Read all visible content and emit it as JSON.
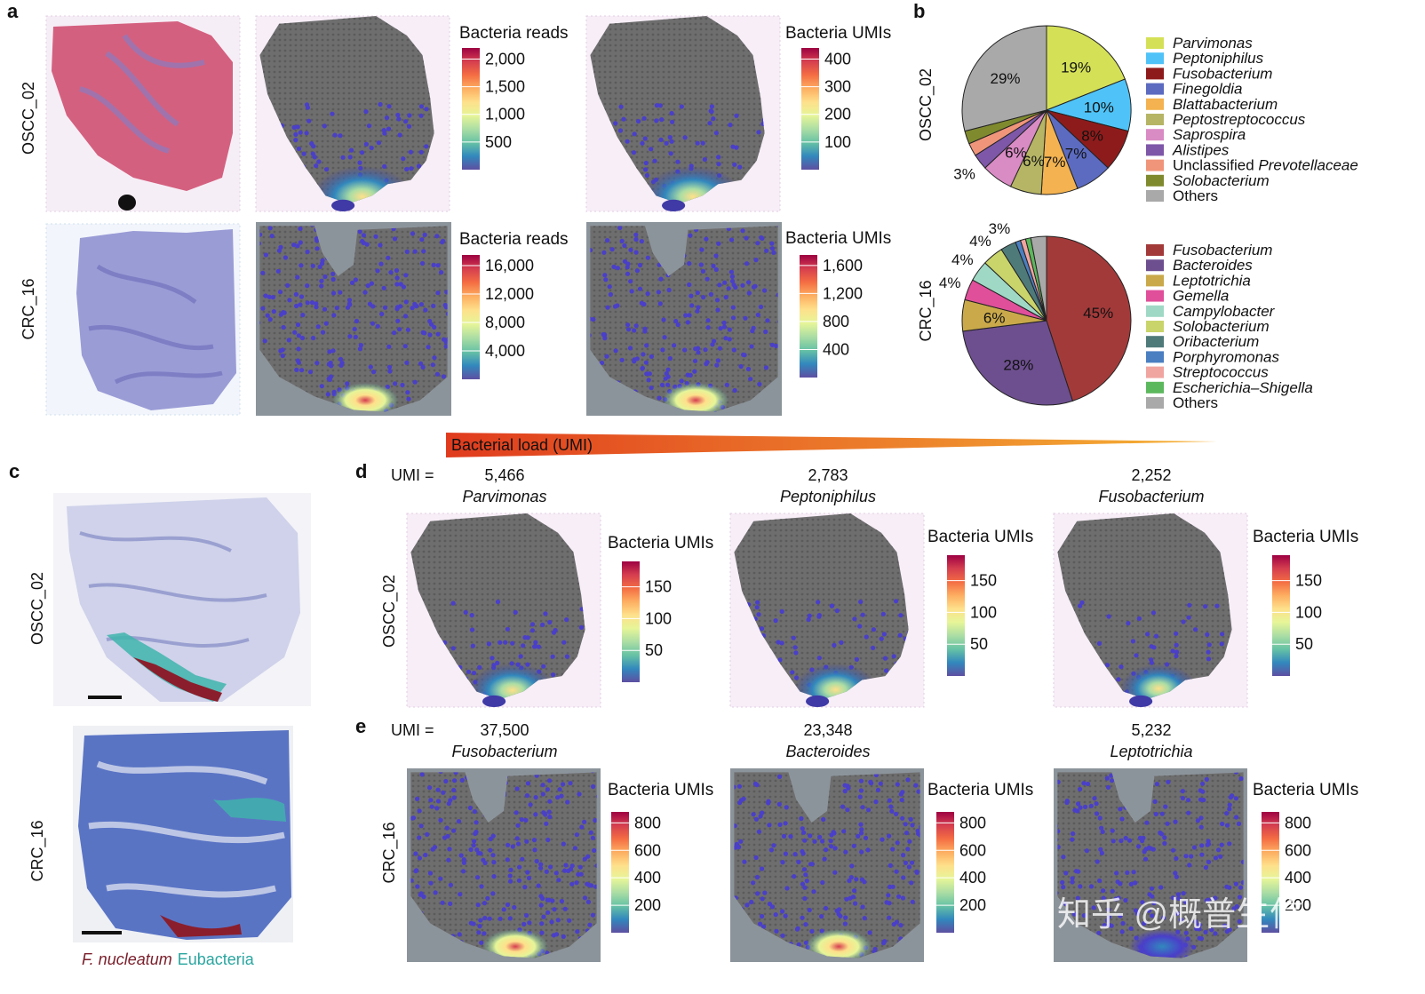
{
  "panels": {
    "a": {
      "label": "a"
    },
    "b": {
      "label": "b"
    },
    "c": {
      "label": "c"
    },
    "d": {
      "label": "d"
    },
    "e": {
      "label": "e"
    }
  },
  "samples": {
    "oscc": "OSCC_02",
    "crc": "CRC_16"
  },
  "colorbar_colors": [
    "#5e4fa2",
    "#3288bd",
    "#66c2a5",
    "#abdda4",
    "#e6f598",
    "#fee08b",
    "#fdae61",
    "#f46d43",
    "#d53e4f",
    "#9e0142"
  ],
  "tissue_colors": {
    "he": "#d4607f",
    "ihc": "#8b8ccf",
    "spot_bg": "#6e6e6e",
    "low_spot": "#4a3fc9"
  },
  "load_bar": {
    "label": "Bacterial load (UMI)",
    "color_start": "#e03b1e",
    "color_end": "#f5b335"
  },
  "umi_prefix": "UMI =",
  "stain_caption": {
    "fnuc": "F. nucleatum",
    "eub": "Eubacteria",
    "fnuc_color": "#7a1f2b",
    "eub_color": "#2aa6a0"
  },
  "watermark": "知乎 @概普生信",
  "chart_data": [
    {
      "type": "heatmap",
      "panel": "a",
      "sample": "OSCC_02",
      "colorbar_title": "Bacteria reads",
      "ticks": [
        2000,
        1500,
        1000,
        500
      ],
      "tick_labels": [
        "2,000",
        "1,500",
        "1,000",
        "500"
      ],
      "range": [
        0,
        2200
      ]
    },
    {
      "type": "heatmap",
      "panel": "a",
      "sample": "OSCC_02",
      "colorbar_title": "Bacteria UMIs",
      "ticks": [
        400,
        300,
        200,
        100
      ],
      "tick_labels": [
        "400",
        "300",
        "200",
        "100"
      ],
      "range": [
        0,
        440
      ]
    },
    {
      "type": "heatmap",
      "panel": "a",
      "sample": "CRC_16",
      "colorbar_title": "Bacteria reads",
      "ticks": [
        16000,
        12000,
        8000,
        4000
      ],
      "tick_labels": [
        "16,000",
        "12,000",
        "8,000",
        "4,000"
      ],
      "range": [
        0,
        17500
      ]
    },
    {
      "type": "heatmap",
      "panel": "a",
      "sample": "CRC_16",
      "colorbar_title": "Bacteria UMIs",
      "ticks": [
        1600,
        1200,
        800,
        400
      ],
      "tick_labels": [
        "1,600",
        "1,200",
        "800",
        "400"
      ],
      "range": [
        0,
        1750
      ]
    },
    {
      "type": "pie",
      "panel": "b",
      "sample": "OSCC_02",
      "slices": [
        {
          "label": "Parvimonas",
          "italic": true,
          "value": 19,
          "pct_label": "19%",
          "color": "#d4e157"
        },
        {
          "label": "Peptoniphilus",
          "italic": true,
          "value": 10,
          "pct_label": "10%",
          "color": "#4fc3f7"
        },
        {
          "label": "Fusobacterium",
          "italic": true,
          "value": 8,
          "pct_label": "8%",
          "color": "#8e1b1b"
        },
        {
          "label": "Finegoldia",
          "italic": true,
          "value": 7,
          "pct_label": "7%",
          "color": "#5c6bc0"
        },
        {
          "label": "Blattabacterium",
          "italic": true,
          "value": 7,
          "pct_label": "7%",
          "color": "#f4b350"
        },
        {
          "label": "Peptostreptococcus",
          "italic": true,
          "value": 6,
          "pct_label": "6%",
          "color": "#b5b565"
        },
        {
          "label": "Saprospira",
          "italic": true,
          "value": 6,
          "pct_label": "6%",
          "color": "#d98bc4"
        },
        {
          "label": "Alistipes",
          "italic": true,
          "value": 3,
          "pct_label": "3%",
          "color": "#7e57a8"
        },
        {
          "label": "Unclassified ",
          "label_italic": "Prevotellaceae",
          "italic": false,
          "value": 2.5,
          "pct_label": "",
          "color": "#f0957a"
        },
        {
          "label": "Solobacterium",
          "italic": true,
          "value": 2.5,
          "pct_label": "",
          "color": "#7f8a2e"
        },
        {
          "label": "Others",
          "italic": false,
          "value": 29,
          "pct_label": "29%",
          "color": "#a9a9a9"
        }
      ]
    },
    {
      "type": "pie",
      "panel": "b",
      "sample": "CRC_16",
      "slices": [
        {
          "label": "Fusobacterium",
          "italic": true,
          "value": 45,
          "pct_label": "45%",
          "color": "#a33a3a"
        },
        {
          "label": "Bacteroides",
          "italic": true,
          "value": 28,
          "pct_label": "28%",
          "color": "#6d4f8f"
        },
        {
          "label": "Leptotrichia",
          "italic": true,
          "value": 6,
          "pct_label": "6%",
          "color": "#c9a94a"
        },
        {
          "label": "Gemella",
          "italic": true,
          "value": 4,
          "pct_label": "4%",
          "color": "#e04f9a"
        },
        {
          "label": "Campylobacter",
          "italic": true,
          "value": 4,
          "pct_label": "4%",
          "color": "#9fd9c6"
        },
        {
          "label": "Solobacterium",
          "italic": true,
          "value": 4,
          "pct_label": "4%",
          "color": "#c9d46a"
        },
        {
          "label": "Oribacterium",
          "italic": true,
          "value": 3,
          "pct_label": "3%",
          "color": "#4f7a7a"
        },
        {
          "label": "Porphyromonas",
          "italic": true,
          "value": 1,
          "pct_label": "",
          "color": "#4a7fc1"
        },
        {
          "label": "Streptococcus",
          "italic": true,
          "value": 1,
          "pct_label": "",
          "color": "#f0a5a0"
        },
        {
          "label": "Escherichia–Shigella",
          "italic": true,
          "value": 1,
          "pct_label": "",
          "color": "#5cb85c"
        },
        {
          "label": "Others",
          "italic": false,
          "value": 3,
          "pct_label": "",
          "color": "#a9a9a9"
        }
      ]
    },
    {
      "type": "heatmap",
      "panel": "d",
      "sample": "OSCC_02",
      "umi": "5,466",
      "genus": "Parvimonas",
      "colorbar_title": "Bacteria UMIs",
      "ticks": [
        150,
        100,
        50
      ],
      "tick_labels": [
        "150",
        "100",
        "50"
      ],
      "range": [
        0,
        190
      ]
    },
    {
      "type": "heatmap",
      "panel": "d",
      "sample": "OSCC_02",
      "umi": "2,783",
      "genus": "Peptoniphilus",
      "colorbar_title": "Bacteria UMIs",
      "ticks": [
        150,
        100,
        50
      ],
      "tick_labels": [
        "150",
        "100",
        "50"
      ],
      "range": [
        0,
        190
      ]
    },
    {
      "type": "heatmap",
      "panel": "d",
      "sample": "OSCC_02",
      "umi": "2,252",
      "genus": "Fusobacterium",
      "colorbar_title": "Bacteria UMIs",
      "ticks": [
        150,
        100,
        50
      ],
      "tick_labels": [
        "150",
        "100",
        "50"
      ],
      "range": [
        0,
        190
      ]
    },
    {
      "type": "heatmap",
      "panel": "e",
      "sample": "CRC_16",
      "umi": "37,500",
      "genus": "Fusobacterium",
      "colorbar_title": "Bacteria UMIs",
      "ticks": [
        800,
        600,
        400,
        200
      ],
      "tick_labels": [
        "800",
        "600",
        "400",
        "200"
      ],
      "range": [
        0,
        880
      ]
    },
    {
      "type": "heatmap",
      "panel": "e",
      "sample": "CRC_16",
      "umi": "23,348",
      "genus": "Bacteroides",
      "colorbar_title": "Bacteria UMIs",
      "ticks": [
        800,
        600,
        400,
        200
      ],
      "tick_labels": [
        "800",
        "600",
        "400",
        "200"
      ],
      "range": [
        0,
        880
      ]
    },
    {
      "type": "heatmap",
      "panel": "e",
      "sample": "CRC_16",
      "umi": "5,232",
      "genus": "Leptotrichia",
      "colorbar_title": "Bacteria UMIs",
      "ticks": [
        800,
        600,
        400,
        200
      ],
      "tick_labels": [
        "800",
        "600",
        "400",
        "200"
      ],
      "range": [
        0,
        880
      ]
    }
  ]
}
